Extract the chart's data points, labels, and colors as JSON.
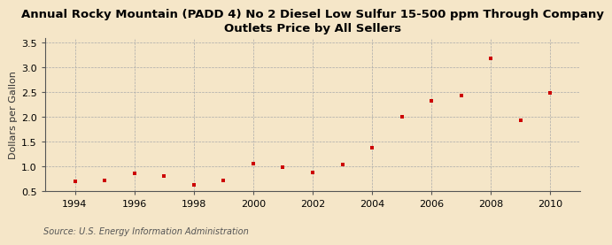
{
  "title_line1": "Annual Rocky Mountain (PADD 4) No 2 Diesel Low Sulfur 15-500 ppm Through Company",
  "title_line2": "Outlets Price by All Sellers",
  "ylabel": "Dollars per Gallon",
  "source": "Source: U.S. Energy Information Administration",
  "background_color": "#f5e6c8",
  "plot_bg_color": "#f5e6c8",
  "marker_color": "#cc0000",
  "years": [
    1994,
    1995,
    1996,
    1997,
    1998,
    1999,
    2000,
    2001,
    2002,
    2003,
    2004,
    2005,
    2006,
    2007,
    2008,
    2009,
    2010
  ],
  "values": [
    0.7,
    0.73,
    0.87,
    0.81,
    0.63,
    0.73,
    1.06,
    0.99,
    0.88,
    1.05,
    1.39,
    2.0,
    2.32,
    2.43,
    3.18,
    1.94,
    2.49
  ],
  "xlim": [
    1993.0,
    2011.0
  ],
  "ylim": [
    0.5,
    3.6
  ],
  "yticks": [
    0.5,
    1.0,
    1.5,
    2.0,
    2.5,
    3.0,
    3.5
  ],
  "xticks": [
    1994,
    1996,
    1998,
    2000,
    2002,
    2004,
    2006,
    2008,
    2010
  ],
  "title_fontsize": 9.5,
  "ylabel_fontsize": 8,
  "tick_fontsize": 8,
  "source_fontsize": 7
}
